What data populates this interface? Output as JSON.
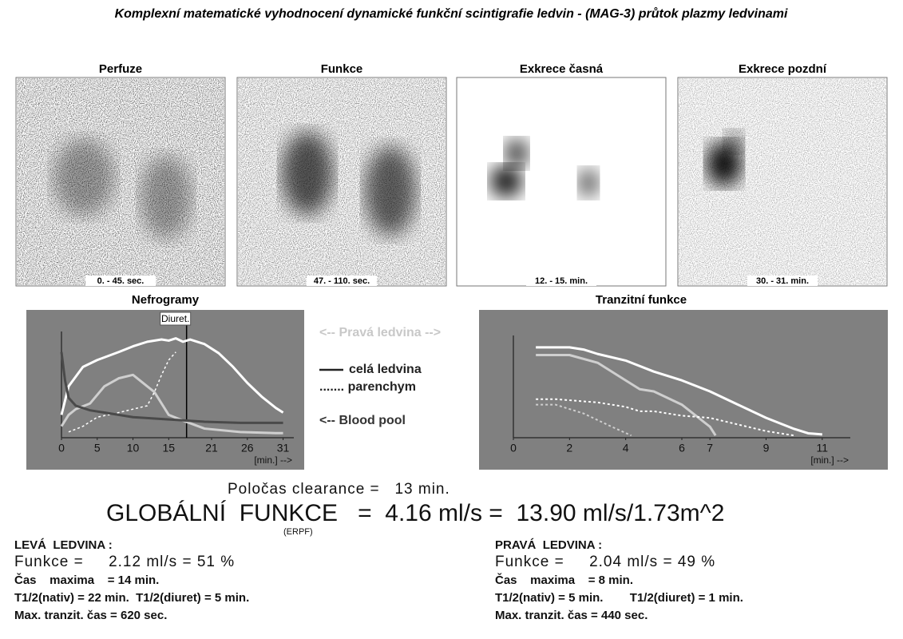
{
  "header": {
    "title": "Komplexní matematické vyhodnocení dynamické funkční scintigrafie ledvin - (MAG-3) průtok plazmy ledvinami"
  },
  "images": [
    {
      "label": "Perfuze",
      "time": "0. - 45. sec."
    },
    {
      "label": "Funkce",
      "time": "47. - 110. sec."
    },
    {
      "label": "Exkrece časná",
      "time": "12. - 15. min."
    },
    {
      "label": "Exkrece pozdní",
      "time": "30. - 31. min."
    }
  ],
  "charts": [
    {
      "type": "line",
      "title": "Nefrogramy",
      "annotation": "Diuret.",
      "annotation_x": 17.5,
      "xlim": [
        0,
        32.5
      ],
      "ylim": [
        0,
        100
      ],
      "xticks": [
        0,
        5,
        10,
        15,
        21,
        26,
        31
      ],
      "xlabel": "[min.] -->",
      "series": [
        {
          "color": "#ffffff",
          "width": 3,
          "dash": false,
          "x": [
            0,
            1,
            3,
            5,
            8,
            10,
            12,
            14,
            15,
            16,
            17,
            18,
            20,
            22,
            24,
            26,
            28,
            30,
            31
          ],
          "values": [
            20,
            45,
            62,
            68,
            75,
            80,
            84,
            86,
            85,
            87,
            84,
            86,
            82,
            74,
            62,
            48,
            36,
            26,
            22
          ]
        },
        {
          "color": "#cfcfcf",
          "width": 3,
          "dash": false,
          "x": [
            0,
            1,
            2,
            4,
            6,
            8,
            10,
            12,
            13,
            15,
            17,
            20,
            25,
            30,
            31
          ],
          "values": [
            10,
            20,
            25,
            30,
            45,
            52,
            55,
            45,
            40,
            20,
            15,
            8,
            5,
            4,
            4
          ]
        },
        {
          "color": "#ffffff",
          "width": 1.5,
          "dash": true,
          "x": [
            1,
            3,
            5,
            8,
            10,
            12,
            13,
            14,
            15,
            16
          ],
          "values": [
            5,
            10,
            18,
            22,
            25,
            28,
            40,
            55,
            68,
            75
          ]
        },
        {
          "color": "#4a4a4a",
          "width": 3,
          "dash": false,
          "x": [
            0,
            0.5,
            1,
            2,
            4,
            6,
            8,
            10,
            15,
            20,
            25,
            31
          ],
          "values": [
            75,
            50,
            35,
            28,
            24,
            22,
            20,
            18,
            16,
            14,
            13,
            13
          ]
        }
      ]
    },
    {
      "type": "line",
      "title": "Tranzitní funkce",
      "xlim": [
        0,
        12
      ],
      "ylim": [
        0,
        100
      ],
      "xticks": [
        0,
        2,
        4,
        6,
        7,
        9,
        11
      ],
      "xlabel": "[min.] -->",
      "series": [
        {
          "color": "#ffffff",
          "width": 3,
          "dash": false,
          "x": [
            0.8,
            2,
            2.5,
            3,
            4,
            5,
            6,
            7,
            8,
            9,
            10,
            10.5,
            11
          ],
          "values": [
            82,
            82,
            80,
            76,
            70,
            60,
            52,
            42,
            30,
            18,
            8,
            4,
            3
          ]
        },
        {
          "color": "#cfcfcf",
          "width": 3,
          "dash": false,
          "x": [
            0.8,
            2,
            3,
            4,
            4.5,
            5,
            6,
            7,
            7.2
          ],
          "values": [
            75,
            75,
            68,
            52,
            44,
            42,
            30,
            10,
            2
          ]
        },
        {
          "color": "#ffffff",
          "width": 2,
          "dash": true,
          "x": [
            0.8,
            1.5,
            3,
            4,
            4.5,
            5,
            6,
            7,
            8,
            9,
            10
          ],
          "values": [
            35,
            35,
            32,
            28,
            24,
            24,
            20,
            18,
            12,
            6,
            2
          ]
        },
        {
          "color": "#cfcfcf",
          "width": 2,
          "dash": true,
          "x": [
            0.8,
            1.5,
            2.5,
            3.5,
            4.2
          ],
          "values": [
            30,
            30,
            22,
            10,
            2
          ]
        }
      ]
    }
  ],
  "legend": [
    "<-- Pravá ledvina -->",
    "celá ledvina",
    "....... parenchym",
    "<-- Blood pool"
  ],
  "summary": {
    "clearance": "Poločas clearance =   13 min.",
    "global": "GLOBÁLNÍ  FUNKCE   =  4.16 ml/s =  13.90 ml/s/1.73m^2",
    "erpf": "(ERPF)"
  },
  "left": {
    "heading": "LEVÁ  LEDVINA :",
    "function": "Funkce =     2.12 ml/s = 51 %",
    "lines": [
      "Čas    maxima    = 14 min.",
      "T1/2(nativ) = 22 min.  T1/2(diuret) = 5 min.",
      "Max. tranzit. čas = 620 sec."
    ]
  },
  "right": {
    "heading": "PRAVÁ  LEDVINA :",
    "function": "Funkce =     2.04 ml/s = 49 %",
    "lines": [
      "Čas    maxima    = 8 min.",
      "T1/2(nativ) = 5 min.        T1/2(diuret) = 1 min.",
      "Max. tranzit. čas = 440 sec."
    ]
  }
}
